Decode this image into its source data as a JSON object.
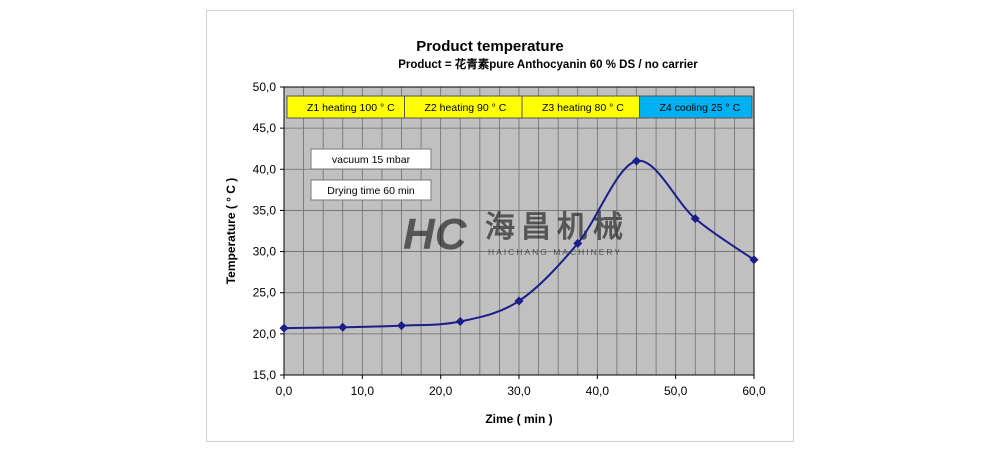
{
  "chart_data": {
    "type": "line",
    "title": "Product temperature",
    "subtitle": "Product = 花青素pure Anthocyanin 60 % DS / no carrier",
    "xlabel": "Zime ( min )",
    "ylabel": "Temperature ( ° C )",
    "xlim": [
      0,
      60
    ],
    "ylim": [
      15,
      50
    ],
    "x_ticks": [
      "0,0",
      "10,0",
      "20,0",
      "30,0",
      "40,0",
      "50,0",
      "60,0"
    ],
    "y_ticks": [
      "15,0",
      "20,0",
      "25,0",
      "30,0",
      "35,0",
      "40,0",
      "45,0",
      "50,0"
    ],
    "x_tick_values": [
      0,
      10,
      20,
      30,
      40,
      50,
      60
    ],
    "y_tick_values": [
      15,
      20,
      25,
      30,
      35,
      40,
      45,
      50
    ],
    "grid": true,
    "series": [
      {
        "color": "#1c1c8a",
        "x": [
          0,
          7.5,
          15,
          22.5,
          30,
          37.5,
          45,
          52.5,
          60
        ],
        "y": [
          20.7,
          20.8,
          21.0,
          21.5,
          24.0,
          31.0,
          41.0,
          34.0,
          29.0
        ]
      }
    ],
    "zones": [
      {
        "label": "Z1  heating 100 °  C",
        "x_start": 0,
        "x_end": 15,
        "color": "#ffff00"
      },
      {
        "label": "Z2  heating 90 °  C",
        "x_start": 15,
        "x_end": 30,
        "color": "#ffff00"
      },
      {
        "label": "Z3  heating 80 °  C",
        "x_start": 30,
        "x_end": 45,
        "color": "#ffff00"
      },
      {
        "label": "Z4  cooling 25 °  C",
        "x_start": 45,
        "x_end": 60,
        "color": "#00b0f0"
      }
    ],
    "annotations": [
      "vacuum 15 mbar",
      "Drying time 60 min"
    ],
    "plot_background": "#c0c0c0",
    "watermark": {
      "mark": "HC",
      "text": "海昌机械",
      "subtext": "HAICHANG MACHINERY",
      "color": "#1fa89a"
    }
  }
}
